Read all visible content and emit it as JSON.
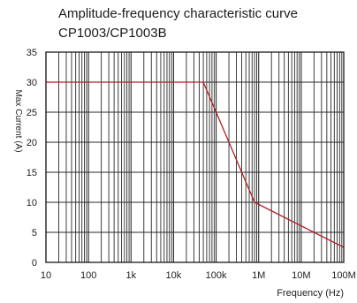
{
  "chart_data": {
    "type": "line",
    "title": "Amplitude-frequency characteristic curve",
    "subtitle": "CP1003/CP1003B",
    "xlabel": "Frequency (Hz)",
    "ylabel": "Max Current (A)",
    "xscale": "log",
    "xlim": [
      10,
      100000000
    ],
    "ylim": [
      0,
      35
    ],
    "xticks": [
      10,
      100,
      1000,
      10000,
      100000,
      1000000,
      10000000,
      100000000
    ],
    "xtick_labels": [
      "10",
      "100",
      "1k",
      "10k",
      "100k",
      "1M",
      "10M",
      "100M"
    ],
    "yticks": [
      0,
      5,
      10,
      15,
      20,
      25,
      30,
      35
    ],
    "ytick_labels": [
      "0",
      "5",
      "10",
      "15",
      "20",
      "25",
      "30",
      "35"
    ],
    "grid": true,
    "series": [
      {
        "color": "#b01f24",
        "x": [
          10,
          50000,
          800000,
          100000000
        ],
        "y": [
          30,
          30,
          10,
          2.5
        ]
      }
    ]
  },
  "colors": {
    "grid": "#2a2a2a",
    "axis": "#1a1a1a",
    "line": "#b01f24"
  }
}
